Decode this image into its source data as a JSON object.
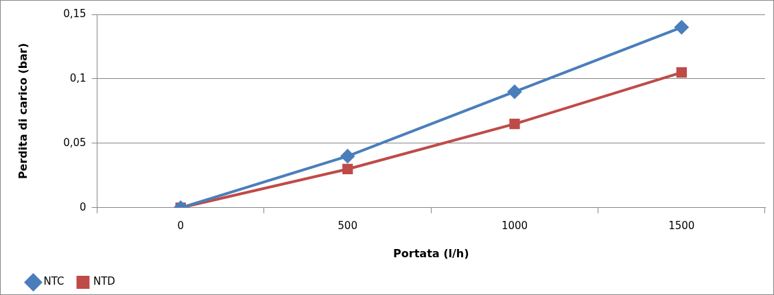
{
  "chart_data": {
    "type": "line",
    "xlabel": "Portata (l/h)",
    "ylabel": "Perdita di carico (bar)",
    "categories": [
      "0",
      "500",
      "1000",
      "1500"
    ],
    "series": [
      {
        "name": "NTC",
        "color": "#4a7ebb",
        "marker": "diamond",
        "values": [
          0,
          0.04,
          0.09,
          0.14
        ]
      },
      {
        "name": "NTD",
        "color": "#be4b48",
        "marker": "square",
        "values": [
          0,
          0.03,
          0.065,
          0.105
        ]
      }
    ],
    "ylim": [
      0,
      0.15
    ],
    "yticks": [
      {
        "value": 0,
        "label": "0"
      },
      {
        "value": 0.05,
        "label": "0,05"
      },
      {
        "value": 0.1,
        "label": "0,1"
      },
      {
        "value": 0.15,
        "label": "0,15"
      }
    ],
    "grid": "y",
    "legend": "bottom left",
    "line_style": "solid"
  }
}
